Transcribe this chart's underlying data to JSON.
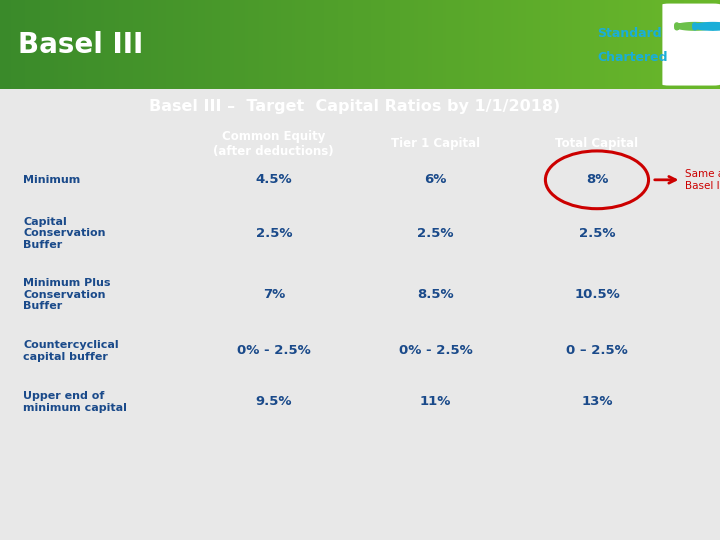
{
  "title": "Basel III",
  "subtitle": "Basel III –  Target  Capital Ratios by 1/1/2018)",
  "title_bg": "#3a8a2a",
  "title_gradient_right": "#6ab82a",
  "subtitle_bg": "#1aaed8",
  "subtitle_border": "#6cc04a",
  "header_bg": "#1aaed8",
  "header_fg": "#ffffff",
  "col_headers": [
    "Common Equity\n(after deductions)",
    "Tier 1 Capital",
    "Total Capital"
  ],
  "row_data": [
    {
      "label": "Minimum",
      "vals": [
        "4.5%",
        "6%",
        "8%"
      ],
      "bg": "#daeaf6",
      "gap_after": true,
      "circle_col": 2
    },
    {
      "label": "Capital\nConservation\nBuffer",
      "vals": [
        "2.5%",
        "2.5%",
        "2.5%"
      ],
      "bg": "#c5def0",
      "gap_after": true,
      "circle_col": -1
    },
    {
      "label": "Minimum Plus\nConservation\nBuffer",
      "vals": [
        "7%",
        "8.5%",
        "10.5%"
      ],
      "bg": "#daeaf6",
      "gap_after": true,
      "circle_col": -1
    },
    {
      "label": "Countercyclical\ncapital buffer",
      "vals": [
        "0% - 2.5%",
        "0% - 2.5%",
        "0 – 2.5%"
      ],
      "bg": "#c5def0",
      "gap_after": true,
      "circle_col": -1
    },
    {
      "label": "Upper end of\nminimum capital",
      "vals": [
        "9.5%",
        "11%",
        "13%"
      ],
      "bg": "#daeaf6",
      "gap_after": false,
      "circle_col": -1
    }
  ],
  "gap_bg": "#ffffff",
  "label_color": "#1a4a8a",
  "value_color": "#1a4a8a",
  "circle_color": "#cc0000",
  "arrow_color": "#cc0000",
  "annotation": "Same as\nBasel II",
  "annotation_color": "#cc0000",
  "outer_bg": "#5cb85c",
  "bottom_bar_color": "#1aaed8",
  "logo_text_color": "#1aaed8"
}
